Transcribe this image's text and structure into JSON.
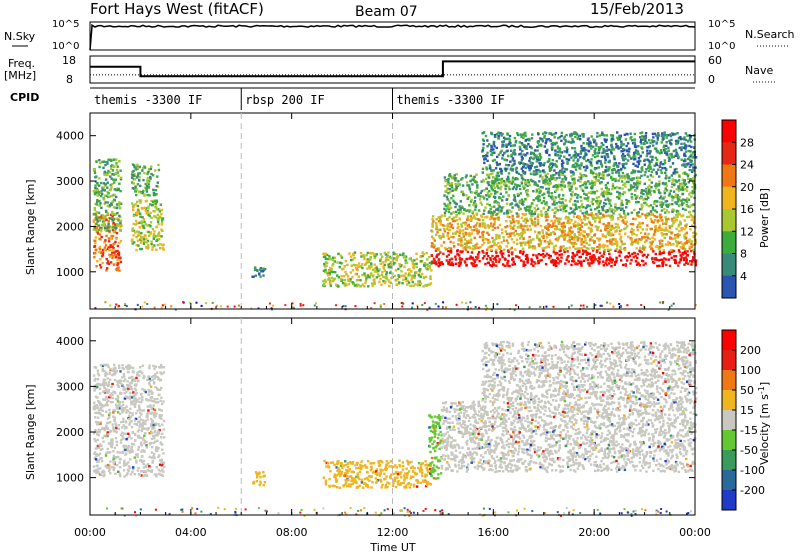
{
  "header": {
    "station": "Fort Hays West (fitACF)",
    "beam": "Beam 07",
    "date": "15/Feb/2013"
  },
  "nsky_panel": {
    "label_left": "N.Sky",
    "label_right": "N.Search",
    "ticks_left": [
      "10^5",
      "10^0"
    ],
    "ticks_right": [
      "10^5",
      "10^0"
    ]
  },
  "freq_panel": {
    "label_left_1": "Freq.",
    "label_left_2": "[MHz]",
    "label_right": "Nave",
    "ticks_left": [
      "18",
      "8"
    ],
    "ticks_right": [
      "60",
      "0"
    ]
  },
  "cpid_panel": {
    "label": "CPID",
    "segments": [
      {
        "label": "themis -3300 IF",
        "start": 0,
        "end": 6
      },
      {
        "label": "rbsp 200 IF",
        "start": 6,
        "end": 12
      },
      {
        "label": "themis -3300 IF",
        "start": 12,
        "end": 24
      }
    ]
  },
  "power_panel": {
    "ylabel": "Slant Range [km]",
    "yticks": [
      "4000",
      "3000",
      "2000",
      "1000"
    ],
    "colorbar_label": "Power [dB]",
    "colorbar_ticks": [
      "28",
      "24",
      "20",
      "16",
      "12",
      "8",
      "4"
    ],
    "colors": [
      "#0000e0",
      "#2a55b0",
      "#3a8a7a",
      "#3cac3c",
      "#a8c832",
      "#f0b41e",
      "#f07814",
      "#e62814",
      "#ff0000"
    ]
  },
  "velocity_panel": {
    "ylabel": "Slant Range [km]",
    "yticks": [
      "4000",
      "3000",
      "2000",
      "1000"
    ],
    "colorbar_label": "Velocity [m s",
    "colorbar_label_sup": "-1",
    "colorbar_label_end": "]",
    "colorbar_ticks": [
      "200",
      "100",
      "50",
      "15",
      "-15",
      "-50",
      "-100",
      "-200"
    ],
    "colors": [
      "#1e3cc8",
      "#2a6a9a",
      "#3c9a5a",
      "#64c832",
      "#c8c8c0",
      "#f0b41e",
      "#f07814",
      "#e61e14",
      "#ff0000"
    ]
  },
  "xaxis": {
    "label": "Time UT",
    "ticks": [
      "00:00",
      "04:00",
      "08:00",
      "12:00",
      "16:00",
      "20:00",
      "00:00"
    ]
  },
  "chart_data": {
    "type": "heatmap",
    "x_range_hours": [
      0,
      24
    ],
    "y_range_km": [
      180,
      4500
    ],
    "markers_hours": [
      6,
      12
    ],
    "freq_steps": [
      {
        "start": 0,
        "end": 2,
        "mhz": 14
      },
      {
        "start": 2,
        "end": 14,
        "mhz": 10.5
      },
      {
        "start": 14,
        "end": 24,
        "mhz": 16
      }
    ],
    "nave_level": 0.3,
    "nsky_level": 0.85,
    "power_regions": [
      {
        "t0": 0.1,
        "t1": 1.2,
        "r0": 1050,
        "r1": 2300,
        "v": 6
      },
      {
        "t0": 0.1,
        "t1": 1.2,
        "r0": 1900,
        "r1": 3500,
        "v": 3
      },
      {
        "t0": 1.6,
        "t1": 2.9,
        "r0": 1500,
        "r1": 2600,
        "v": 4
      },
      {
        "t0": 1.6,
        "t1": 2.7,
        "r0": 2700,
        "r1": 3400,
        "v": 3
      },
      {
        "t0": 6.4,
        "t1": 6.9,
        "r0": 850,
        "r1": 1150,
        "v": 2
      },
      {
        "t0": 9.2,
        "t1": 13.5,
        "r0": 700,
        "r1": 1450,
        "v": 4
      },
      {
        "t0": 13.5,
        "t1": 24,
        "r0": 1150,
        "r1": 1500,
        "v": 8
      },
      {
        "t0": 13.5,
        "t1": 24,
        "r0": 1500,
        "r1": 2300,
        "v": 5
      },
      {
        "t0": 14,
        "t1": 24,
        "r0": 2300,
        "r1": 3200,
        "v": 3
      },
      {
        "t0": 15.5,
        "t1": 24,
        "r0": 3200,
        "r1": 4100,
        "v": 2
      }
    ],
    "velocity_regions": [
      {
        "t0": 0.1,
        "t1": 2.9,
        "r0": 1050,
        "r1": 3500,
        "v": 4
      },
      {
        "t0": 6.4,
        "t1": 6.9,
        "r0": 850,
        "r1": 1150,
        "v": 5
      },
      {
        "t0": 9.2,
        "t1": 13.5,
        "r0": 800,
        "r1": 1400,
        "v": 5
      },
      {
        "t0": 13.4,
        "t1": 13.9,
        "r0": 950,
        "r1": 2400,
        "v": 3
      },
      {
        "t0": 13.9,
        "t1": 24,
        "r0": 1150,
        "r1": 2700,
        "v": 4
      },
      {
        "t0": 15.5,
        "t1": 24,
        "r0": 2700,
        "r1": 4000,
        "v": 4
      }
    ]
  }
}
